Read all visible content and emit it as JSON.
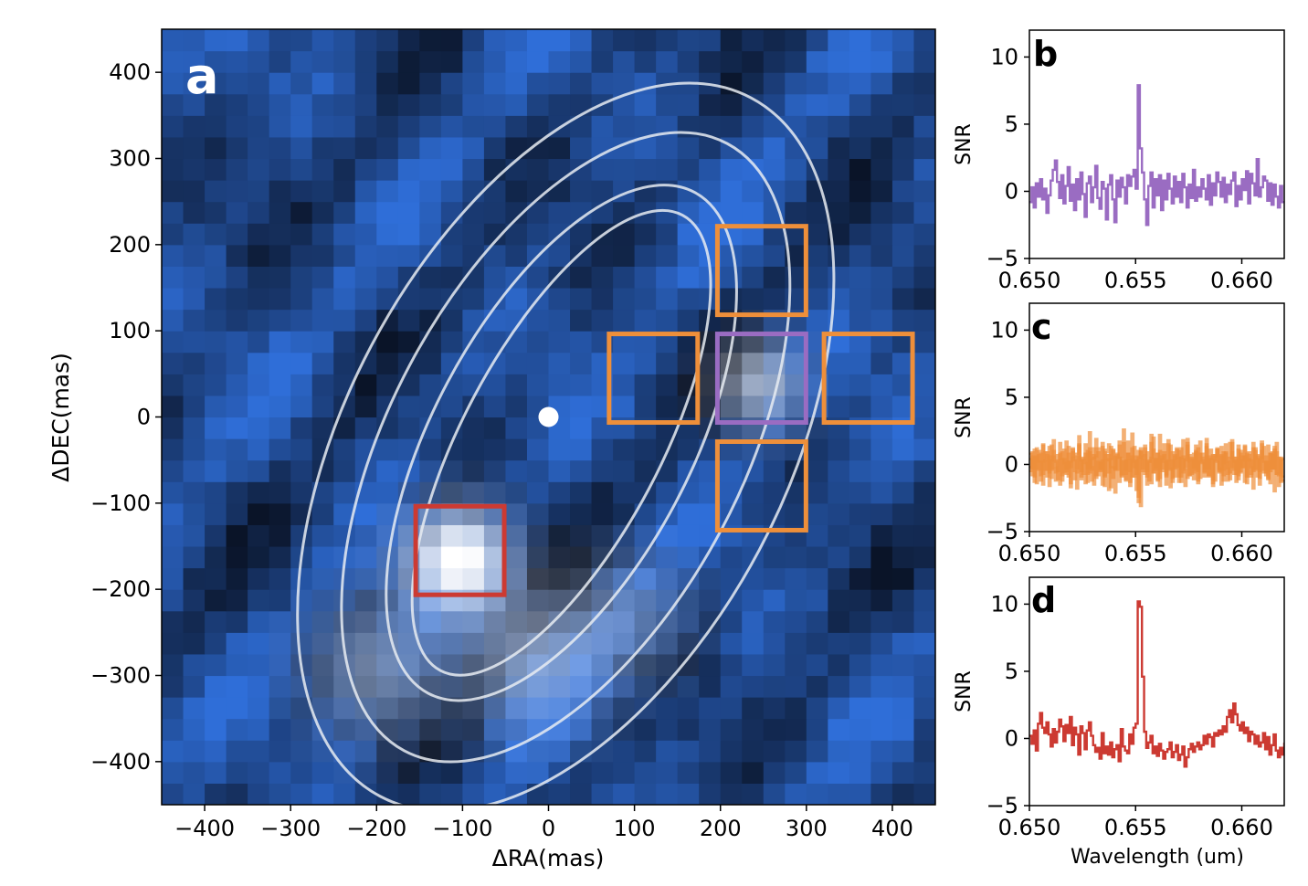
{
  "colors": {
    "purple": "#9a6cc2",
    "orange": "#ee8f3a",
    "red": "#cc3a32",
    "map_low": "#0a1428",
    "map_mid": "#2f6ed8",
    "map_high": "#ffffff",
    "contour": "#e8ecf2"
  },
  "chart_data": [
    {
      "panel": "a",
      "type": "heatmap",
      "xlabel": "ΔRA(mas)",
      "ylabel": "ΔDEC(mas)",
      "xlim": [
        -450,
        450
      ],
      "ylim": [
        -450,
        450
      ],
      "xticks": [
        -400,
        -300,
        -200,
        -100,
        0,
        100,
        200,
        300,
        400
      ],
      "yticks": [
        -400,
        -300,
        -200,
        -100,
        0,
        100,
        200,
        300,
        400
      ],
      "xtick_labels": [
        "−400",
        "−300",
        "−200",
        "−100",
        "0",
        "100",
        "200",
        "300",
        "400"
      ],
      "ytick_labels": [
        "−400",
        "−300",
        "−200",
        "−100",
        "0",
        "100",
        "200",
        "300",
        "400"
      ],
      "pixel_size_mas": 25,
      "star": {
        "x": 0,
        "y": 0
      },
      "sources": [
        {
          "name": "companion-bright",
          "x": -105,
          "y": -165,
          "amp": 1.0,
          "sigma": 40
        },
        {
          "name": "companion-faint",
          "x": 245,
          "y": 40,
          "amp": 0.55,
          "sigma": 35
        },
        {
          "name": "arc-west",
          "x": -200,
          "y": -290,
          "amp": 0.35,
          "sigma": 55
        },
        {
          "name": "arc-center",
          "x": -20,
          "y": -280,
          "amp": 0.4,
          "sigma": 55
        },
        {
          "name": "arc-east",
          "x": 90,
          "y": -230,
          "amp": 0.25,
          "sigma": 50
        }
      ],
      "ellipses": [
        {
          "cx": 15,
          "cy": -30,
          "rx": 115,
          "ry": 300,
          "angle": 28
        },
        {
          "cx": 15,
          "cy": -30,
          "rx": 150,
          "ry": 330,
          "angle": 28
        },
        {
          "cx": 20,
          "cy": -35,
          "rx": 205,
          "ry": 400,
          "angle": 28
        },
        {
          "cx": 20,
          "cy": -35,
          "rx": 255,
          "ry": 460,
          "angle": 28
        }
      ],
      "apertures": [
        {
          "name": "aperture-north",
          "x": 248,
          "y": 170,
          "size": 103,
          "color": "orange"
        },
        {
          "name": "aperture-west",
          "x": 122,
          "y": 45,
          "size": 103,
          "color": "orange"
        },
        {
          "name": "aperture-center",
          "x": 248,
          "y": 45,
          "size": 103,
          "color": "purple"
        },
        {
          "name": "aperture-east",
          "x": 372,
          "y": 45,
          "size": 103,
          "color": "orange"
        },
        {
          "name": "aperture-south",
          "x": 248,
          "y": -80,
          "size": 103,
          "color": "orange"
        },
        {
          "name": "aperture-companion",
          "x": -103,
          "y": -155,
          "size": 103,
          "color": "red"
        }
      ]
    },
    {
      "panel": "b",
      "type": "line",
      "step": true,
      "color": "purple",
      "ylabel": "SNR",
      "xlabel": "",
      "xlim": [
        0.65,
        0.662
      ],
      "ylim": [
        -5,
        12
      ],
      "xticks": [
        0.65,
        0.655,
        0.66
      ],
      "yticks": [
        -5,
        0,
        5,
        10
      ],
      "xtick_labels": [
        "0.650",
        "0.655",
        "0.660"
      ],
      "ytick_labels": [
        "−5",
        "0",
        "5",
        "10"
      ],
      "series": [
        {
          "name": "purple aperture",
          "x_start": 0.65,
          "x_step": 0.0001,
          "values": [
            -0.8,
            0.3,
            -1.2,
            0.6,
            -0.4,
            0.9,
            -0.6,
            0.2,
            -1.6,
            -0.3,
            0.8,
            1.6,
            2.3,
            0.7,
            -0.5,
            1.2,
            -0.9,
            0.4,
            1.8,
            -0.7,
            0.5,
            -1.4,
            0.9,
            -0.6,
            1.4,
            -0.2,
            -1.9,
            0.6,
            1.1,
            -0.8,
            0.3,
            1.9,
            -0.5,
            -1.3,
            0.7,
            0.2,
            -2.1,
            0.5,
            1.2,
            -0.6,
            -2.3,
            0.8,
            -0.4,
            1.0,
            0.3,
            -0.9,
            1.2,
            0.4,
            1.1,
            1.6,
            0.2,
            7.9,
            3.2,
            1.4,
            -0.6,
            -2.5,
            0.4,
            1.4,
            -1.2,
            0.9,
            -0.3,
            1.2,
            -1.4,
            0.8,
            -0.6,
            1.3,
            0.2,
            -0.9,
            1.1,
            -0.4,
            0.7,
            -0.8,
            1.3,
            0.3,
            -1.2,
            0.5,
            -0.5,
            1.6,
            -0.7,
            0.3,
            -0.4,
            0.9,
            0.2,
            -0.6,
            1.2,
            -1.0,
            0.6,
            -0.3,
            1.4,
            0.7,
            -0.4,
            1.0,
            -0.8,
            0.5,
            -0.2,
            0.8,
            1.4,
            -1.1,
            0.4,
            -0.6,
            0.9,
            0.1,
            1.5,
            -0.9,
            1.3,
            0.6,
            -0.3,
            2.4,
            -0.4,
            0.3,
            1.1,
            0.8,
            -0.7,
            0.6,
            -1.0,
            0.5,
            -0.4,
            -1.2,
            0.4,
            -0.8
          ]
        }
      ]
    },
    {
      "panel": "c",
      "type": "line",
      "step": true,
      "color": "orange",
      "ylabel": "SNR",
      "xlabel": "",
      "xlim": [
        0.65,
        0.662
      ],
      "ylim": [
        -5,
        12
      ],
      "xticks": [
        0.65,
        0.655,
        0.66
      ],
      "yticks": [
        -5,
        0,
        5,
        10
      ],
      "xtick_labels": [
        "0.650",
        "0.655",
        "0.660"
      ],
      "ytick_labels": [
        "−5",
        "0",
        "5",
        "10"
      ],
      "series": [
        {
          "name": "orange aperture 1",
          "x_start": 0.65,
          "x_step": 0.0001,
          "values": [
            0.4,
            -0.8,
            1.1,
            -0.3,
            0.7,
            -1.2,
            1.5,
            0.2,
            -0.9,
            0.6,
            -0.4,
            1.8,
            -0.6,
            0.3,
            -1.5,
            0.9,
            0.1,
            -0.7,
            1.3,
            -0.2,
            0.5,
            -1.1,
            0.8,
            2.1,
            -0.5,
            0.3,
            -1.4,
            1.0,
            -0.6,
            0.4,
            1.2,
            -1.0,
            0.2,
            -0.3,
            1.6,
            -0.8,
            0.7,
            -1.9,
            0.4,
            1.1,
            -0.4,
            0.8,
            -1.3,
            0.5,
            2.6,
            -0.7,
            0.3,
            -1.6,
            1.2,
            -0.2,
            0.6,
            -2.8,
            0.9,
            -0.5,
            1.4,
            -0.9,
            0.2,
            2.2,
            -0.6,
            0.4,
            -1.2,
            1.0,
            -0.3,
            0.7,
            -1.5,
            1.8,
            -0.4,
            0.3,
            -0.9,
            1.2,
            0.5,
            -1.3,
            0.6,
            -0.2,
            1.4,
            -0.8,
            0.4,
            -1.1,
            0.9,
            -0.5,
            1.7,
            0.1,
            -0.9,
            0.6,
            -0.3,
            1.1,
            -1.6,
            0.7,
            0.2,
            -0.6,
            1.3,
            -0.4,
            0.8,
            -1.2,
            0.5,
            1.6,
            -0.7,
            0.3,
            -0.8,
            1.0,
            -0.2,
            0.6,
            -1.4,
            0.9,
            0.3,
            -0.5,
            1.2,
            -0.9,
            0.4,
            1.5,
            -0.6,
            0.2,
            -1.0,
            0.8,
            -0.3,
            1.1,
            -0.7,
            0.5,
            -1.3,
            0.4
          ]
        },
        {
          "name": "orange aperture 2",
          "x_start": 0.65,
          "x_step": 0.0001,
          "values": [
            -0.5,
            0.9,
            -1.3,
            0.6,
            0.2,
            -0.8,
            1.4,
            -0.4,
            0.7,
            -1.6,
            0.3,
            1.0,
            -0.2,
            -1.1,
            0.8,
            0.4,
            -0.6,
            1.7,
            -0.9,
            0.2,
            1.2,
            -0.5,
            -1.8,
            0.6,
            0.3,
            -0.7,
            1.5,
            -0.3,
            0.9,
            -1.2,
            0.5,
            1.9,
            -0.8,
            0.1,
            -1.5,
            1.1,
            0.4,
            -0.6,
            1.3,
            -0.2,
            -2.1,
            0.7,
            0.5,
            -0.9,
            1.6,
            -0.4,
            0.8,
            -1.3,
            2.3,
            0.2,
            -0.7,
            1.0,
            -3.1,
            0.6,
            1.2,
            -0.5,
            0.3,
            -1.4,
            2.0,
            -0.2,
            0.8,
            -1.0,
            0.4,
            1.5,
            -0.7,
            0.2,
            -1.7,
            0.9,
            -0.3,
            1.1,
            -0.9,
            0.5,
            1.8,
            -0.4,
            -1.0,
            0.7,
            0.3,
            -0.6,
            1.4,
            -1.2,
            0.2,
            0.8,
            -0.5,
            1.9,
            -0.8,
            0.4,
            -1.1,
            0.6,
            1.2,
            -0.3,
            -1.5,
            0.9,
            0.1,
            -0.7,
            1.6,
            -0.2,
            0.5,
            -1.3,
            1.1,
            -0.6,
            0.3,
            1.4,
            -0.9,
            0.7,
            -0.2,
            -1.8,
            1.0,
            0.4,
            -0.5,
            1.7,
            -0.4,
            0.6,
            -1.1,
            0.8,
            -0.3,
            1.3,
            -0.7,
            -1.6,
            0.5,
            -0.9
          ]
        },
        {
          "name": "orange aperture 3",
          "x_start": 0.65,
          "x_step": 0.0001,
          "values": [
            0.8,
            -0.3,
            0.5,
            -1.4,
            1.0,
            0.2,
            -0.7,
            0.9,
            -0.4,
            1.3,
            -1.0,
            0.6,
            0.2,
            -0.5,
            1.6,
            -1.2,
            0.4,
            -0.3,
            0.8,
            -1.7,
            1.1,
            0.3,
            -0.6,
            1.4,
            -0.9,
            0.5,
            0.1,
            -1.3,
            2.4,
            -0.4,
            0.7,
            -0.8,
            1.2,
            -0.5,
            0.3,
            -1.6,
            0.9,
            1.5,
            -0.2,
            -1.0,
            0.6,
            -0.4,
            1.7,
            -0.7,
            0.3,
            -1.2,
            0.8,
            0.4,
            -0.9,
            1.3,
            -1.9,
            0.5,
            1.0,
            -0.3,
            0.7,
            -1.5,
            0.2,
            1.6,
            -0.6,
            0.4,
            -1.1,
            2.2,
            -0.5,
            0.9,
            -0.8,
            0.3,
            1.4,
            -1.3,
            0.6,
            -0.2,
            1.0,
            -0.9,
            0.4,
            -1.6,
            1.9,
            0.2,
            -0.7,
            0.8,
            -0.4,
            1.2,
            -1.0,
            0.5,
            -0.3,
            1.5,
            -0.8,
            0.6,
            -1.4,
            0.3,
            1.1,
            -0.5,
            0.7,
            -1.2,
            0.9,
            0.2,
            -0.6,
            1.8,
            -0.4,
            0.5,
            -1.1,
            0.8,
            -0.2,
            1.3,
            -0.9,
            0.4,
            -0.7,
            1.6,
            -0.3,
            0.6,
            -1.5,
            1.0,
            0.2,
            -0.8,
            1.4,
            -0.5,
            0.7,
            -2.0,
            0.9,
            -0.6,
            0.3
          ]
        },
        {
          "name": "orange aperture 4",
          "x_start": 0.65,
          "x_step": 0.0001,
          "values": [
            -0.2,
            0.6,
            -0.9,
            1.2,
            -0.4,
            0.8,
            -1.5,
            0.3,
            0.9,
            -0.6,
            1.4,
            -0.3,
            -1.2,
            0.7,
            0.4,
            -0.8,
            1.1,
            -0.5,
            0.2,
            -1.4,
            0.9,
            0.6,
            -0.3,
            1.5,
            -1.1,
            0.4,
            0.8,
            -0.7,
            1.2,
            -0.2,
            -1.5,
            0.6,
            0.9,
            -0.4,
            1.3,
            -0.9,
            0.3,
            0.7,
            -1.7,
            1.0,
            -0.3,
            0.5,
            1.4,
            -0.8,
            0.2,
            -1.1,
            1.7,
            -0.5,
            0.6,
            -0.9,
            0.3,
            -2.4,
            1.2,
            0.4,
            -0.7,
            0.9,
            -1.2,
            0.5,
            1.1,
            -0.4,
            0.8,
            -1.6,
            0.6,
            0.2,
            -0.9,
            1.5,
            -0.3,
            -1.0,
            0.7,
            0.4,
            -1.3,
            1.2,
            -0.6,
            0.3,
            1.6,
            -0.8,
            0.5,
            -0.2,
            1.0,
            -1.4,
            0.8,
            0.3,
            -0.6,
            1.3,
            -0.9,
            0.4,
            0.7,
            -1.2,
            1.1,
            -0.4,
            0.6,
            -0.8,
            1.5,
            -0.3,
            -1.1,
            0.9,
            0.2,
            -0.7,
            1.4,
            -0.5,
            0.6,
            -1.3,
            0.8,
            0.3,
            -0.9,
            1.2,
            -0.4,
            0.7,
            -1.0,
            0.5,
            1.3,
            -0.6,
            0.2,
            -1.4,
            0.9,
            -0.3,
            1.6,
            -0.8,
            0.4,
            -1.2
          ]
        }
      ]
    },
    {
      "panel": "d",
      "type": "line",
      "step": true,
      "color": "red",
      "ylabel": "SNR",
      "xlabel": "Wavelength (um)",
      "xlim": [
        0.65,
        0.662
      ],
      "ylim": [
        -5,
        12
      ],
      "xticks": [
        0.65,
        0.655,
        0.66
      ],
      "yticks": [
        -5,
        0,
        5,
        10
      ],
      "xtick_labels": [
        "0.650",
        "0.655",
        "0.660"
      ],
      "ytick_labels": [
        "−5",
        "0",
        "5",
        "10"
      ],
      "series": [
        {
          "name": "red aperture",
          "x_start": 0.65,
          "x_step": 0.0001,
          "values": [
            0.2,
            -0.4,
            0.6,
            -0.9,
            1.1,
            1.9,
            0.8,
            0.4,
            1.2,
            0.3,
            -0.6,
            0.7,
            -0.3,
            0.5,
            1.4,
            0.9,
            -0.2,
            1.0,
            0.4,
            1.6,
            -0.5,
            0.8,
            0.3,
            -1.2,
            0.9,
            0.4,
            -0.8,
            0.6,
            1.2,
            0.2,
            -0.5,
            -1.0,
            -0.7,
            -1.5,
            0.4,
            -1.1,
            -0.6,
            -1.2,
            -0.3,
            -1.4,
            -0.8,
            -0.5,
            -1.7,
            0.7,
            -0.6,
            -0.9,
            -1.1,
            0.3,
            -0.4,
            0.8,
            1.1,
            10.2,
            9.8,
            4.6,
            0.5,
            -0.7,
            -0.3,
            0.2,
            -1.1,
            -0.6,
            -1.3,
            -0.4,
            -0.9,
            -1.5,
            -1.0,
            -0.8,
            -0.3,
            -1.4,
            -1.0,
            -0.5,
            -1.6,
            -1.2,
            -0.6,
            -2.1,
            -1.4,
            -0.8,
            -0.4,
            -1.0,
            -0.6,
            -0.3,
            -0.8,
            -0.5,
            0.2,
            -0.4,
            0.3,
            0.1,
            -0.6,
            0.4,
            0.2,
            0.6,
            0.3,
            0.9,
            0.5,
            1.6,
            2.1,
            1.2,
            2.6,
            1.8,
            1.0,
            0.6,
            1.2,
            0.4,
            0.8,
            -0.2,
            0.5,
            0.3,
            -0.4,
            0.2,
            -0.6,
            -0.3,
            0.4,
            -0.8,
            0.1,
            -1.2,
            -0.5,
            0.3,
            -0.9,
            -1.4,
            -0.7,
            -1.2,
            -0.4
          ]
        }
      ]
    }
  ]
}
